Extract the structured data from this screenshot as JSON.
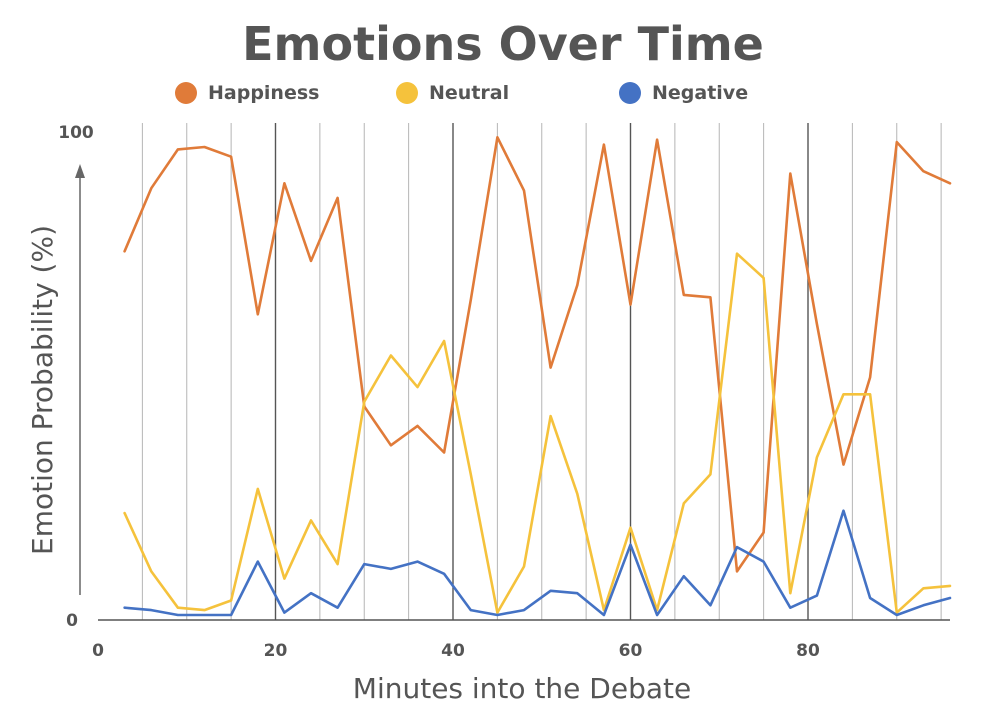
{
  "chart_data": {
    "type": "line",
    "title": "Emotions Over Time",
    "xlabel": "Minutes into the Debate",
    "ylabel": "Emotion Probability (%)",
    "xlim": [
      0,
      96
    ],
    "ylim": [
      0,
      100
    ],
    "x_ticks": [
      "0",
      "20",
      "40",
      "60",
      "80"
    ],
    "y_ticks": [
      "0",
      "100"
    ],
    "grid": "vertical",
    "legend_position": "top",
    "x": [
      3,
      6,
      9,
      12,
      15,
      18,
      21,
      24,
      27,
      30,
      33,
      36,
      39,
      42,
      45,
      48,
      51,
      54,
      57,
      60,
      63,
      66,
      69,
      72,
      75,
      78,
      81,
      84,
      87,
      90,
      93,
      96
    ],
    "series": [
      {
        "name": "Happiness",
        "color": "#E07B39",
        "values": [
          75,
          88,
          96,
          96.5,
          94.5,
          62,
          89,
          73,
          86,
          43,
          35,
          39,
          33.5,
          65,
          98.5,
          87.5,
          51,
          68,
          97,
          64,
          98,
          66,
          65.5,
          9,
          17,
          91,
          60,
          31,
          49,
          97.5,
          91.5,
          89
        ]
      },
      {
        "name": "Neutral",
        "color": "#F5C23C",
        "values": [
          21,
          9,
          1.5,
          1,
          3,
          26,
          7.5,
          19.5,
          10.5,
          44,
          53.5,
          47,
          56.5,
          29,
          0.5,
          10,
          41,
          25,
          1,
          18,
          1,
          23,
          29,
          74.5,
          69.5,
          4.5,
          32.5,
          45.5,
          45.5,
          0.5,
          5.5,
          6
        ]
      },
      {
        "name": "Negative",
        "color": "#4472C4",
        "values": [
          1.5,
          1,
          0,
          0,
          0,
          11,
          0.5,
          4.5,
          1.5,
          10.5,
          9.5,
          11,
          8.5,
          1,
          0,
          1,
          5,
          4.5,
          0,
          14.5,
          0,
          8,
          2,
          14,
          11,
          1.5,
          4,
          21.5,
          3.5,
          0,
          2,
          3.5
        ]
      }
    ]
  }
}
